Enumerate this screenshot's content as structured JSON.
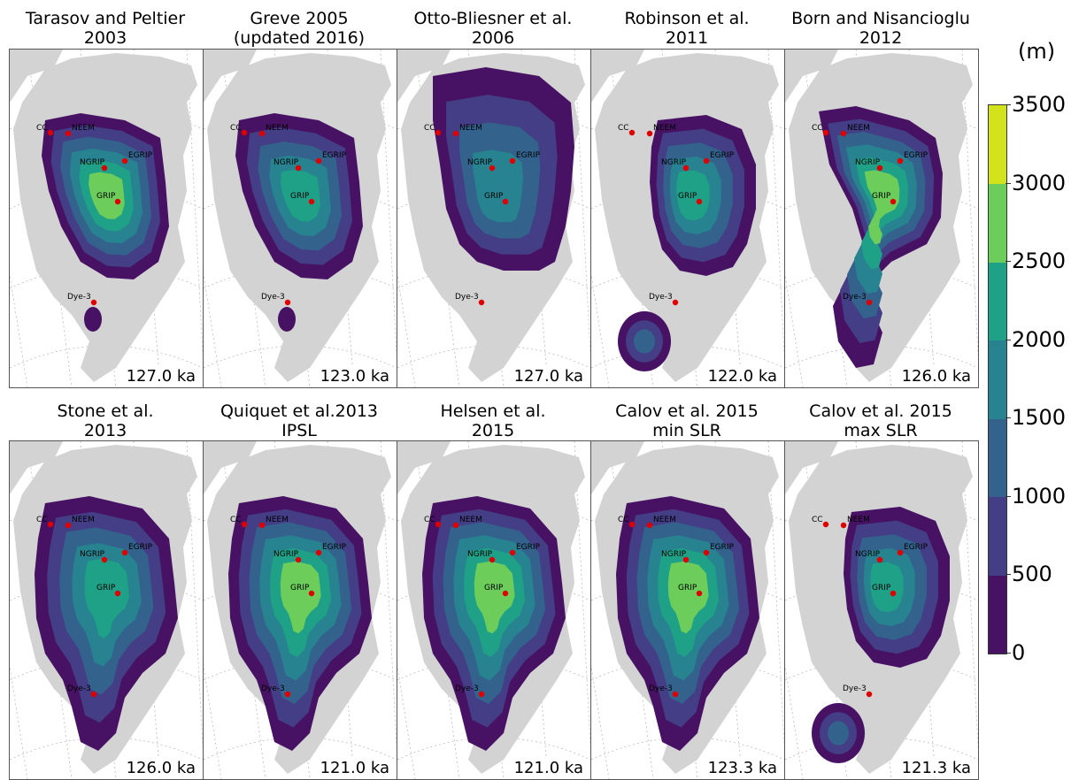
{
  "unit": "(m)",
  "colorbar": {
    "ticks": [
      "3500",
      "3000",
      "2500",
      "2000",
      "1500",
      "1000",
      "500",
      "0"
    ],
    "colors": [
      "#440154",
      "#472d7b",
      "#3b528b",
      "#2c728e",
      "#21918c",
      "#28ae80",
      "#5ec962",
      "#addc30",
      "#d5e21a"
    ]
  },
  "stations": [
    "CC",
    "NEEM",
    "NGRIP",
    "EGRIP",
    "GRIP",
    "Dye-3"
  ],
  "panels": [
    {
      "title1": "Tarasov and Peltier",
      "title2": "2003",
      "age": "127.0 ka",
      "peak": 0.85,
      "extent": "main",
      "south": "small"
    },
    {
      "title1": "Greve 2005",
      "title2": "(updated 2016)",
      "age": "123.0 ka",
      "peak": 0.7,
      "extent": "main",
      "south": "small"
    },
    {
      "title1": "Otto-Bliesner et al.",
      "title2": "2006",
      "age": "127.0 ka",
      "peak": 0.55,
      "extent": "wide",
      "south": "none"
    },
    {
      "title1": "Robinson et al.",
      "title2": "2011",
      "age": "122.0 ka",
      "peak": 0.7,
      "extent": "narrow",
      "south": "cap"
    },
    {
      "title1": "Born and Nisancioglu",
      "title2": "2012",
      "age": "126.0 ka",
      "peak": 0.9,
      "extent": "hook",
      "south": "none"
    },
    {
      "title1": "Stone et al.",
      "title2": "2013",
      "age": "126.0 ka",
      "peak": 0.72,
      "extent": "full",
      "south": "none"
    },
    {
      "title1": "Quiquet et al.2013",
      "title2": "IPSL",
      "age": "121.0 ka",
      "peak": 0.85,
      "extent": "full",
      "south": "none"
    },
    {
      "title1": "Helsen et al.",
      "title2": "2015",
      "age": "121.0 ka",
      "peak": 0.88,
      "extent": "full",
      "south": "none"
    },
    {
      "title1": "Calov et al. 2015",
      "title2": "min SLR",
      "age": "123.3 ka",
      "peak": 0.85,
      "extent": "full",
      "south": "none"
    },
    {
      "title1": "Calov et al. 2015",
      "title2": "max SLR",
      "age": "121.3 ka",
      "peak": 0.75,
      "extent": "narrow",
      "south": "cap"
    }
  ]
}
